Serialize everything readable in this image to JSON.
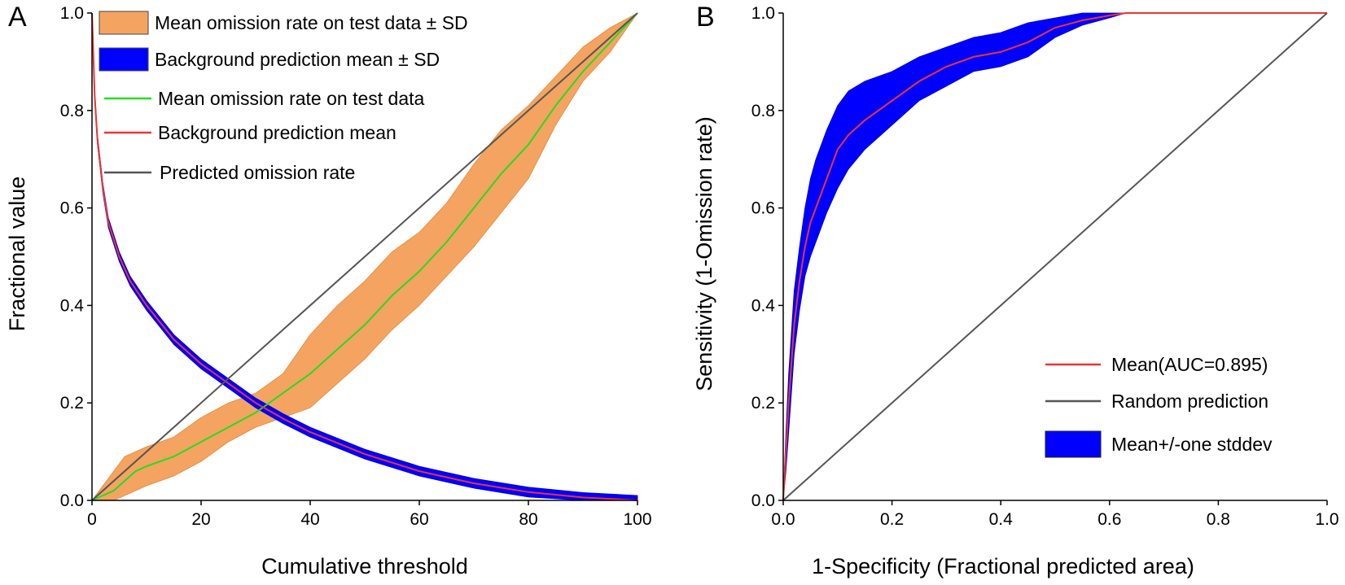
{
  "chart_data": [
    {
      "panel_label": "A",
      "type": "line",
      "xlabel": "Cumulative threshold",
      "ylabel": "Fractional value",
      "xlim": [
        0,
        100
      ],
      "ylim": [
        0,
        1.0
      ],
      "xticks": [
        "0",
        "20",
        "40",
        "60",
        "80",
        "100"
      ],
      "yticks": [
        "0.0",
        "0.2",
        "0.4",
        "0.6",
        "0.8",
        "1.0"
      ],
      "legend_position": "top-left",
      "legend": [
        {
          "label": "Mean omission rate on test data ± SD",
          "kind": "band",
          "color": "#f4a460"
        },
        {
          "label": "Background prediction mean ± SD",
          "kind": "band",
          "color": "#0000ff"
        },
        {
          "label": "Mean omission rate on test data",
          "kind": "line",
          "color": "#22dd22"
        },
        {
          "label": "Background prediction mean",
          "kind": "line",
          "color": "#ee3333"
        },
        {
          "label": "Predicted omission rate",
          "kind": "line",
          "color": "#555555"
        }
      ],
      "series": [
        {
          "name": "Mean omission rate on test data",
          "color": "#22dd22",
          "x": [
            0,
            2,
            4,
            6,
            8,
            10,
            15,
            20,
            25,
            30,
            35,
            40,
            45,
            50,
            55,
            60,
            65,
            70,
            75,
            80,
            85,
            90,
            95,
            100
          ],
          "y": [
            0.0,
            0.01,
            0.02,
            0.04,
            0.06,
            0.07,
            0.09,
            0.12,
            0.15,
            0.18,
            0.22,
            0.26,
            0.31,
            0.36,
            0.42,
            0.47,
            0.53,
            0.6,
            0.67,
            0.73,
            0.81,
            0.88,
            0.94,
            1.0
          ],
          "sd_lower": [
            0.0,
            0.0,
            0.0,
            0.01,
            0.02,
            0.03,
            0.05,
            0.08,
            0.12,
            0.15,
            0.17,
            0.19,
            0.24,
            0.29,
            0.35,
            0.4,
            0.46,
            0.52,
            0.59,
            0.66,
            0.77,
            0.86,
            0.92,
            1.0
          ],
          "sd_upper": [
            0.0,
            0.03,
            0.06,
            0.09,
            0.1,
            0.11,
            0.13,
            0.17,
            0.2,
            0.22,
            0.26,
            0.34,
            0.4,
            0.45,
            0.51,
            0.55,
            0.61,
            0.69,
            0.76,
            0.81,
            0.87,
            0.93,
            0.97,
            1.0
          ]
        },
        {
          "name": "Background prediction mean",
          "color": "#ee3333",
          "x": [
            0,
            0.5,
            1,
            2,
            3,
            5,
            7,
            10,
            15,
            20,
            25,
            30,
            35,
            40,
            50,
            60,
            70,
            80,
            90,
            100
          ],
          "y": [
            1.0,
            0.83,
            0.74,
            0.64,
            0.57,
            0.5,
            0.45,
            0.4,
            0.33,
            0.28,
            0.24,
            0.2,
            0.168,
            0.14,
            0.095,
            0.06,
            0.035,
            0.017,
            0.006,
            0.0
          ],
          "sd": 0.01
        },
        {
          "name": "Predicted omission rate",
          "color": "#555555",
          "x": [
            0,
            100
          ],
          "y": [
            0.0,
            1.0
          ]
        }
      ]
    },
    {
      "panel_label": "B",
      "type": "line",
      "xlabel": "1-Specificity (Fractional predicted area)",
      "ylabel": "Sensitivity (1-Omission rate)",
      "xlim": [
        0,
        1.0
      ],
      "ylim": [
        0,
        1.0
      ],
      "xticks": [
        "0.0",
        "0.2",
        "0.4",
        "0.6",
        "0.8",
        "1.0"
      ],
      "yticks": [
        "0.0",
        "0.2",
        "0.4",
        "0.6",
        "0.8",
        "1.0"
      ],
      "legend_position": "bottom-right",
      "legend": [
        {
          "label": "Mean(AUC=0.895)",
          "kind": "line",
          "color": "#ee3333"
        },
        {
          "label": "Random prediction",
          "kind": "line",
          "color": "#555555"
        },
        {
          "label": "Mean+/-one stddev",
          "kind": "band",
          "color": "#0000ff"
        }
      ],
      "series": [
        {
          "name": "Mean(AUC=0.895)",
          "color": "#ee3333",
          "x": [
            0,
            0.005,
            0.01,
            0.02,
            0.03,
            0.04,
            0.05,
            0.06,
            0.08,
            0.1,
            0.12,
            0.15,
            0.2,
            0.25,
            0.3,
            0.35,
            0.4,
            0.45,
            0.5,
            0.55,
            0.6,
            0.63,
            1.0
          ],
          "y": [
            0,
            0.1,
            0.2,
            0.36,
            0.45,
            0.52,
            0.57,
            0.6,
            0.66,
            0.72,
            0.75,
            0.78,
            0.82,
            0.86,
            0.89,
            0.91,
            0.92,
            0.94,
            0.97,
            0.985,
            0.995,
            1.0,
            1.0
          ],
          "sd_lower": [
            0,
            0.06,
            0.14,
            0.3,
            0.39,
            0.46,
            0.5,
            0.53,
            0.59,
            0.64,
            0.68,
            0.72,
            0.77,
            0.82,
            0.85,
            0.88,
            0.89,
            0.91,
            0.95,
            0.975,
            0.99,
            1.0,
            1.0
          ],
          "sd_upper": [
            0,
            0.14,
            0.26,
            0.43,
            0.52,
            0.6,
            0.66,
            0.7,
            0.76,
            0.81,
            0.84,
            0.86,
            0.88,
            0.91,
            0.93,
            0.95,
            0.96,
            0.98,
            0.99,
            1.0,
            1.0,
            1.0,
            1.0
          ]
        },
        {
          "name": "Random prediction",
          "color": "#555555",
          "x": [
            0,
            1.0
          ],
          "y": [
            0,
            1.0
          ]
        }
      ]
    }
  ]
}
